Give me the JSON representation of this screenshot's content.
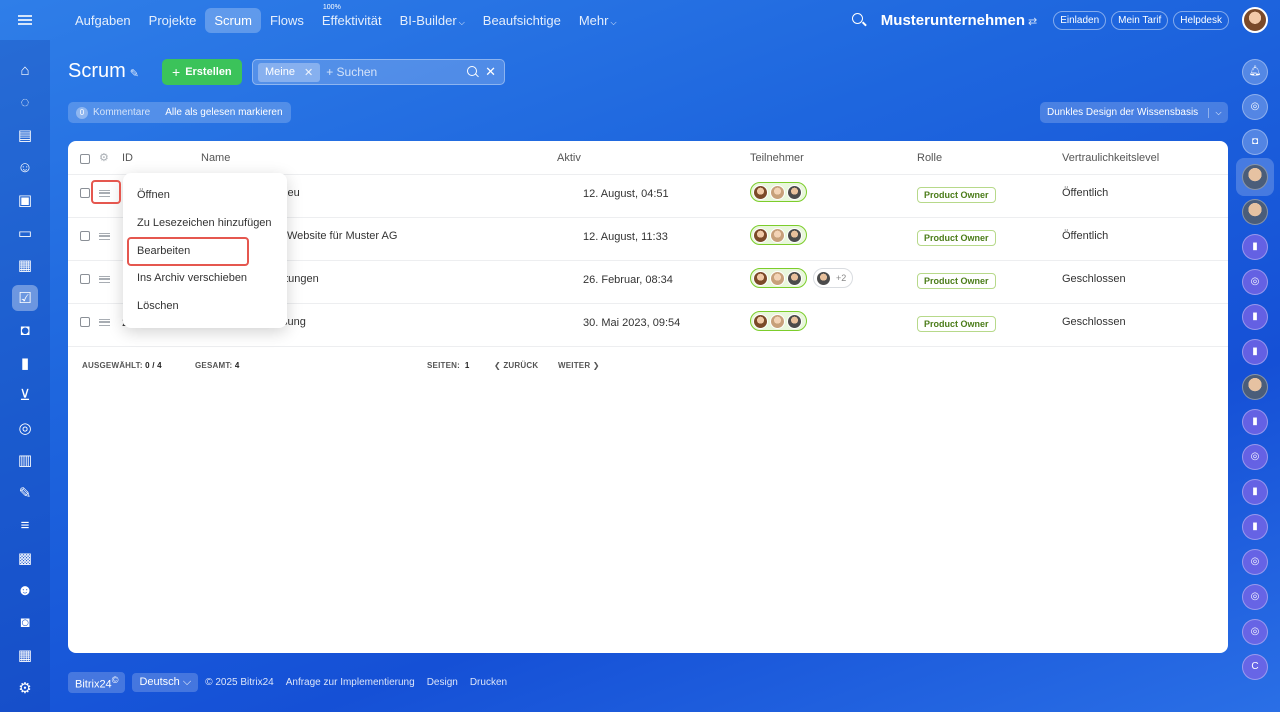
{
  "topbar": {
    "nav": [
      {
        "label": "Aufgaben"
      },
      {
        "label": "Projekte"
      },
      {
        "label": "Scrum",
        "active": true
      },
      {
        "label": "Flows"
      },
      {
        "label": "Effektivität",
        "sup": "100%"
      },
      {
        "label": "BI-Builder",
        "caret": "⌵"
      },
      {
        "label": "Beaufsichtige"
      },
      {
        "label": "Mehr",
        "caret": "⌵"
      }
    ],
    "company": "Musterunternehmen",
    "company_switch": "⇄",
    "invite": "Einladen",
    "tariff": "Mein Tarif",
    "helpdesk": "Helpdesk"
  },
  "left_sidebar": {
    "icons": [
      "home-icon",
      "feed-icon",
      "tasks-icon",
      "contacts-icon",
      "docs-icon",
      "drive-icon",
      "stream-icon",
      "scrum-icon",
      "chat-icon",
      "chart-icon",
      "cart-icon",
      "target-icon",
      "store-icon",
      "sign-icon",
      "filter-icon",
      "crm-icon",
      "bot-icon",
      "forms-icon",
      "calendar-icon",
      "settings-icon"
    ],
    "glyphs": [
      "⌂",
      "◌",
      "▤",
      "☺",
      "▣",
      "▭",
      "▦",
      "☑",
      "◘",
      "▮",
      "⊻",
      "◎",
      "▥",
      "✎",
      "≡",
      "▩",
      "☻",
      "◙",
      "▦",
      "⚙"
    ]
  },
  "right_sidebar": {
    "items": [
      {
        "name": "bell-icon",
        "glyph": "🔔︎",
        "style": "light"
      },
      {
        "name": "copilot-icon",
        "glyph": "◎",
        "style": "light"
      },
      {
        "name": "chat-bubble-icon",
        "glyph": "◘",
        "style": "light"
      },
      {
        "name": "user-avatar",
        "glyph": "",
        "style": "face",
        "selected": true
      },
      {
        "name": "group-avatar",
        "glyph": "",
        "style": "face"
      },
      {
        "name": "chat-icon",
        "glyph": "▮",
        "style": ""
      },
      {
        "name": "chat-icon",
        "glyph": "◎",
        "style": ""
      },
      {
        "name": "chat-icon",
        "glyph": "▮",
        "style": ""
      },
      {
        "name": "chat-icon",
        "glyph": "▮",
        "style": ""
      },
      {
        "name": "group-avatar",
        "glyph": "",
        "style": "face"
      },
      {
        "name": "chat-icon",
        "glyph": "▮",
        "style": ""
      },
      {
        "name": "chat-icon",
        "glyph": "◎",
        "style": ""
      },
      {
        "name": "chat-icon",
        "glyph": "▮",
        "style": ""
      },
      {
        "name": "chat-icon",
        "glyph": "▮",
        "style": ""
      },
      {
        "name": "chat-icon",
        "glyph": "◎",
        "style": ""
      },
      {
        "name": "chat-icon",
        "glyph": "◎",
        "style": ""
      },
      {
        "name": "chat-icon",
        "glyph": "◎",
        "style": ""
      },
      {
        "name": "chat-icon",
        "glyph": "C",
        "style": ""
      }
    ]
  },
  "page": {
    "title": "Scrum",
    "pin": "✎",
    "create_label": "Erstellen",
    "create_plus": "+",
    "filter_chip": "Meine",
    "filter_chip_x": "✕",
    "search_placeholder": "+ Suchen",
    "search_clear": "✕",
    "comments_count": "0",
    "comments_label": "Kommentare",
    "mark_read": "Alle als gelesen markieren",
    "theme_label": "Dunkles Design der Wissensbasis",
    "theme_caret": "⌵"
  },
  "grid": {
    "headers": {
      "id": "ID",
      "name": "Name",
      "active": "Aktiv",
      "members": "Teilnehmer",
      "role": "Rolle",
      "privacy": "Vertraulichkeitslevel"
    },
    "rows": [
      {
        "id": "",
        "name": "kt Neu",
        "active": "12. August, 04:51",
        "role": "Product Owner",
        "privacy": "Öffentlich",
        "extra": ""
      },
      {
        "id": "",
        "name": "der Website für Muster AG",
        "active": "12. August, 11:33",
        "role": "Product Owner",
        "privacy": "Öffentlich",
        "extra": ""
      },
      {
        "id": "",
        "name": "staltungen",
        "active": "26. Februar, 08:34",
        "role": "Product Owner",
        "privacy": "Geschlossen",
        "extra": "+2"
      },
      {
        "id": "2",
        "name": "lassung",
        "active": "30. Mai 2023, 09:54",
        "role": "Product Owner",
        "privacy": "Geschlossen",
        "extra": ""
      }
    ],
    "footer": {
      "selected_label": "AUSGEWÄHLT:",
      "selected_value": "0 / 4",
      "total_label": "GESAMT:",
      "total_value": "4",
      "pages_label": "SEITEN:",
      "pages_value": "1",
      "back": "❮ ZURÜCK",
      "next": "WEITER ❯"
    }
  },
  "context_menu": {
    "items": [
      "Öffnen",
      "Zu Lesezeichen hinzufügen",
      "Bearbeiten",
      "Ins Archiv verschieben",
      "Löschen"
    ]
  },
  "footer": {
    "brand": "Bitrix24",
    "brand_mark": "©",
    "language": "Deutsch",
    "language_caret": "⌵",
    "copyright": "© 2025 Bitrix24",
    "impl": "Anfrage zur Implementierung",
    "design": "Design",
    "print": "Drucken"
  },
  "colors": {
    "accent": "#1e66de",
    "create": "#3bc35a",
    "highlight": "#e5574f",
    "role_badge": "#4b7c19"
  }
}
